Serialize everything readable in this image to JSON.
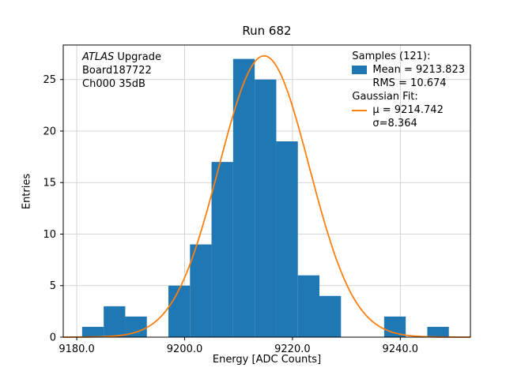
{
  "figure": {
    "title": "Run 682",
    "xlabel": "Energy [ADC Counts]",
    "ylabel": "Entries"
  },
  "annotation": {
    "line1_italic": "ATLAS",
    "line1_rest": " Upgrade",
    "line2": "Board187722",
    "line3": "Ch000 35dB"
  },
  "legend": {
    "samples_header": "Samples (121):",
    "mean": "Mean = 9213.823",
    "rms": "RMS = 10.674",
    "fit_header": "Gaussian Fit:",
    "mu": "μ = 9214.742",
    "sigma": "σ=8.364"
  },
  "colors": {
    "hist": "#1f77b4",
    "fit": "#ff7f0e",
    "grid": "#c8c8c8",
    "frame": "#000000"
  },
  "chart_data": {
    "type": "bar",
    "subtype": "histogram-with-gaussian-fit",
    "title": "Run 682",
    "xlabel": "Energy [ADC Counts]",
    "ylabel": "Entries",
    "n_samples": 121,
    "mean": 9213.823,
    "rms": 10.674,
    "bin_edges": [
      9181,
      9185,
      9189,
      9193,
      9197,
      9201,
      9205,
      9209,
      9213,
      9217,
      9221,
      9225,
      9229,
      9233,
      9237,
      9241,
      9245,
      9249
    ],
    "counts": [
      1,
      3,
      2,
      0,
      5,
      9,
      17,
      27,
      25,
      19,
      6,
      4,
      0,
      0,
      2,
      0,
      1
    ],
    "fit": {
      "type": "gaussian",
      "mu": 9214.742,
      "sigma": 8.364,
      "amplitude": 27.3
    },
    "xlim": [
      9177.5,
      9253.0
    ],
    "ylim": [
      0,
      28.35
    ],
    "xticks": [
      9180,
      9200,
      9220,
      9240
    ],
    "xtick_labels": [
      "9180.0",
      "9200.0",
      "9220.0",
      "9240.0"
    ],
    "yticks": [
      0,
      5,
      10,
      15,
      20,
      25
    ],
    "ytick_labels": [
      "0",
      "5",
      "10",
      "15",
      "20",
      "25"
    ],
    "grid": true,
    "legend_position": "upper right"
  }
}
